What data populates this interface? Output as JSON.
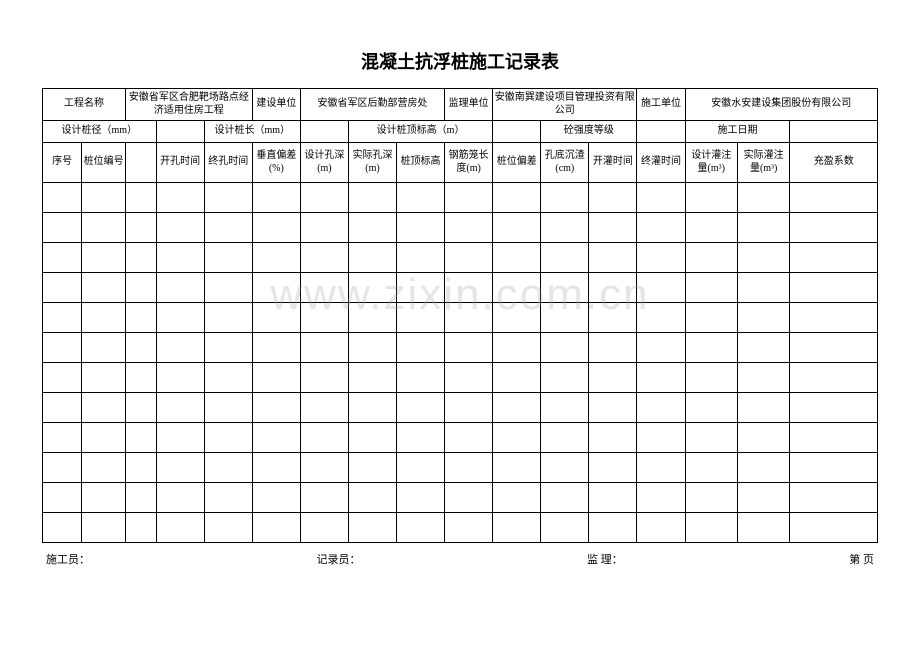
{
  "title": "混凝土抗浮桩施工记录表",
  "row1": {
    "project_name_label": "工程名称",
    "project_name_value": "安徽省军区合肥靶场路点经济适用住房工程",
    "build_unit_label": "建设单位",
    "build_unit_value": "安徽省军区后勤部营房处",
    "supervise_unit_label": "监理单位",
    "supervise_unit_value": "安徽南巽建设项目管理投资有限公司",
    "construct_unit_label": "施工单位",
    "construct_unit_value": "安徽水安建设集团股份有限公司"
  },
  "row2": {
    "design_diameter_label": "设计桩径（mm）",
    "design_length_label": "设计桩长（mm）",
    "design_top_elev_label": "设计桩顶标高（m）",
    "concrete_grade_label": "砼强度等级",
    "construct_date_label": "施工日期"
  },
  "row3": {
    "seq": "序号",
    "pile_no": "桩位编号",
    "blank": "",
    "open_time": "开孔时间",
    "end_time": "终孔时间",
    "vert_dev": "垂直偏差(%)",
    "design_depth": "设计孔深(m)",
    "actual_depth": "实际孔深(m)",
    "pile_top": "桩顶标高",
    "cage_len": "钢筋笼长度(m)",
    "pile_dev": "桩位偏差",
    "hole_sediment": "孔底沉渣(cm)",
    "pour_start": "开灌时间",
    "pour_end": "终灌时间",
    "design_vol": "设计灌注量(m³)",
    "actual_vol": "实际灌注量(m³)",
    "fill_coef": "充盈系数"
  },
  "empty_rows": 12,
  "footer": {
    "constructor": "施工员：",
    "recorder": "记录员：",
    "supervisor": "监 理：",
    "page": "第  页"
  },
  "watermark": "www.zixin.com.cn",
  "colors": {
    "border": "#000000",
    "background": "#ffffff",
    "text": "#000000",
    "watermark": "rgba(160,160,160,0.28)"
  },
  "typography": {
    "title_fontsize": 18,
    "cell_fontsize": 10,
    "footer_fontsize": 11,
    "watermark_fontsize": 44
  }
}
